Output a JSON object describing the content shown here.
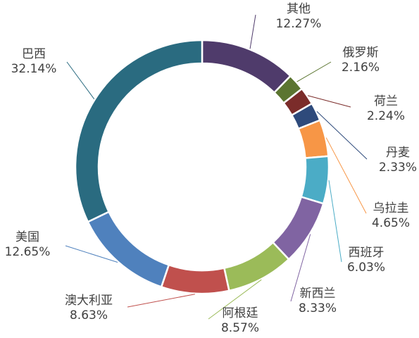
{
  "chart_data": {
    "type": "pie",
    "variant": "donut",
    "legend": "none",
    "labels_show": [
      "category",
      "percent"
    ],
    "series": [
      {
        "name": "其他",
        "value": 12.27,
        "percent": "12.27%",
        "color": "#4F3B6B"
      },
      {
        "name": "俄罗斯",
        "value": 2.16,
        "percent": "2.16%",
        "color": "#5B7530"
      },
      {
        "name": "荷兰",
        "value": 2.24,
        "percent": "2.24%",
        "color": "#7B2C2A"
      },
      {
        "name": "丹麦",
        "value": 2.33,
        "percent": "2.33%",
        "color": "#2E4A7B"
      },
      {
        "name": "乌拉圭",
        "value": 4.65,
        "percent": "4.65%",
        "color": "#F79646"
      },
      {
        "name": "西班牙",
        "value": 6.03,
        "percent": "6.03%",
        "color": "#4BACC6"
      },
      {
        "name": "新西兰",
        "value": 8.33,
        "percent": "8.33%",
        "color": "#8064A2"
      },
      {
        "name": "阿根廷",
        "value": 8.57,
        "percent": "8.57%",
        "color": "#9BBB59"
      },
      {
        "name": "澳大利亚",
        "value": 8.63,
        "percent": "8.63%",
        "color": "#C0504D"
      },
      {
        "name": "美国",
        "value": 12.65,
        "percent": "12.65%",
        "color": "#4F81BD"
      },
      {
        "name": "巴西",
        "value": 32.14,
        "percent": "32.14%",
        "color": "#2A6B80"
      }
    ]
  }
}
